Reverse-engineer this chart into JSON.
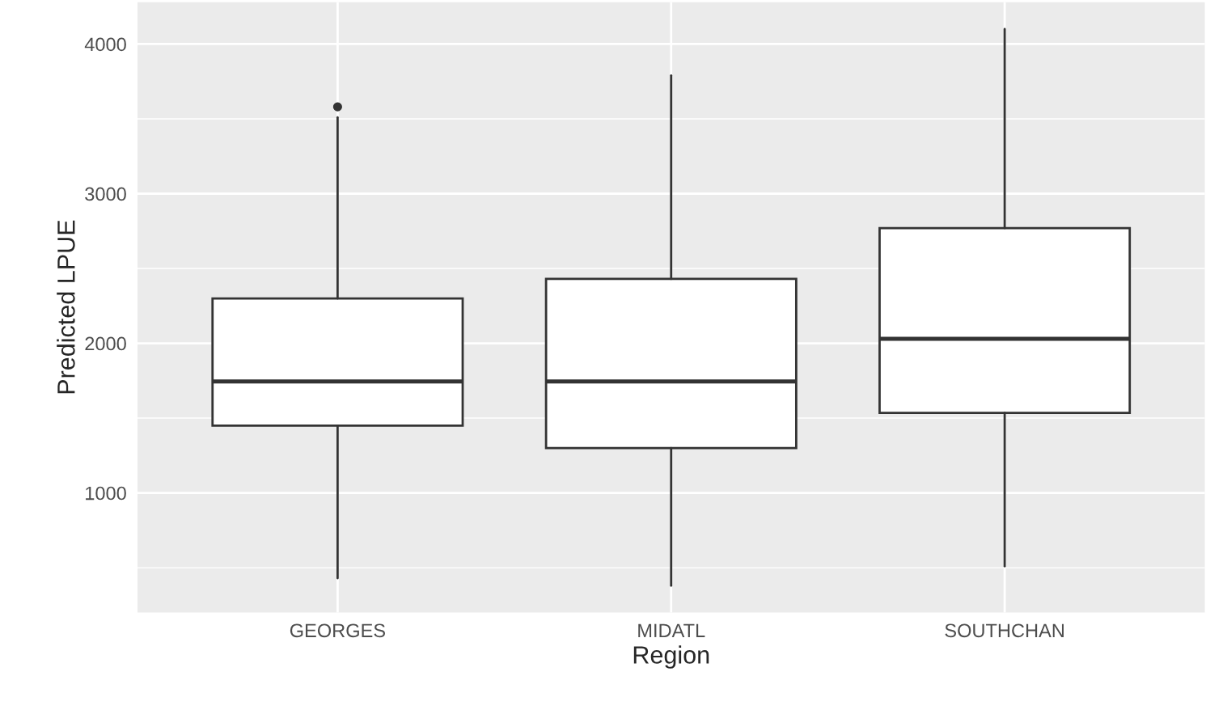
{
  "chart_data": {
    "type": "box",
    "xlabel": "Region",
    "ylabel": "Predicted LPUE",
    "categories": [
      "GEORGES",
      "MIDATL",
      "SOUTHCHAN"
    ],
    "boxes": [
      {
        "low": 430,
        "q1": 1450,
        "median": 1745,
        "q3": 2300,
        "high": 3510,
        "outliers": [
          3580
        ]
      },
      {
        "low": 380,
        "q1": 1300,
        "median": 1745,
        "q3": 2430,
        "high": 3790
      },
      {
        "low": 510,
        "q1": 1535,
        "median": 2030,
        "q3": 2770,
        "high": 4100
      }
    ],
    "ylim": [
      200,
      4280
    ],
    "yticks": [
      1000,
      2000,
      3000,
      4000
    ],
    "grid": true
  }
}
